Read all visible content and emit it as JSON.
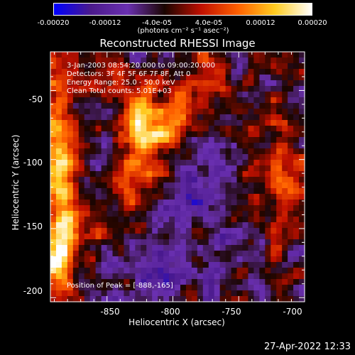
{
  "colorbar": {
    "ticks": [
      "-0.00020",
      "-0.00012",
      "-4.0e-05",
      "4.0e-05",
      "0.00012",
      "0.00020"
    ],
    "unit": "(photons cm⁻² s⁻¹ asec⁻²)",
    "range": [
      -0.0002,
      0.0002
    ]
  },
  "annotations": {
    "time_range": "3-Jan-2003 08:54:20.000 to 09:00:20.000",
    "detectors": "Detectors: 3F 4F 5F 6F 7F 8F, Att 0",
    "energy": "Energy Range: 25.0 - 50.0 keV",
    "clean": "Clean     Total counts: 5.01E+03",
    "peak": "Position of Peak = [-888,-165]"
  },
  "timestamp": "27-Apr-2022 12:33",
  "chart_data": {
    "type": "heatmap",
    "title": "Reconstructed RHESSI Image",
    "xlabel": "Heliocentric X (arcsec)",
    "ylabel": "Heliocentric Y (arcsec)",
    "xlim": [
      -893,
      -700
    ],
    "ylim": [
      -203,
      -22
    ],
    "x_ticks": [
      -850,
      -800,
      -750,
      -700
    ],
    "x_tick_labels": [
      "-850",
      "-800",
      "-750",
      "-700"
    ],
    "y_ticks": [
      -50,
      -100,
      -150,
      -200
    ],
    "y_tick_labels": [
      "-50",
      "-100",
      "-150",
      "-200"
    ],
    "colormap": [
      "#0000ff",
      "#4b1a8c",
      "#6a30b0",
      "#1a0500",
      "#c01000",
      "#ff6000",
      "#ffcc20",
      "#ffffff"
    ],
    "peak_position": [
      -888,
      -165
    ],
    "image_grid_note": "noisy reconstructed map; brightest regions at left edge and central diagonal band"
  }
}
